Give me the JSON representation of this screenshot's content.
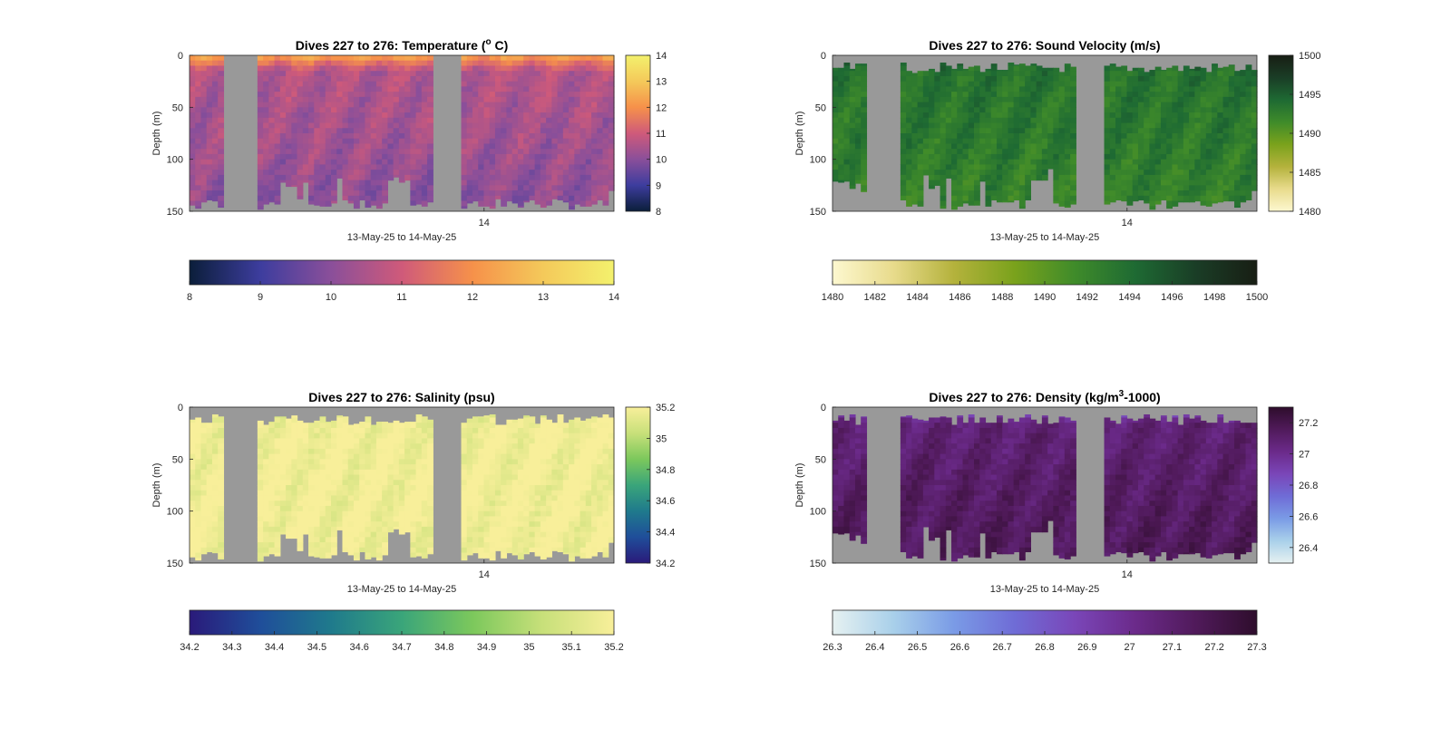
{
  "figure": {
    "background": "#ffffff",
    "missing_data_color": "#999999"
  },
  "chart_data": [
    {
      "type": "heatmap",
      "title": "Dives 227 to 276: Temperature (",
      "title_sup": "o",
      "title_after": " C)",
      "xlabel": "13-May-25 to 14-May-25",
      "ylabel": "Depth (m)",
      "x_ticks": [
        "14"
      ],
      "y_ticks": [
        "0",
        "50",
        "100",
        "150"
      ],
      "ylim": [
        0,
        150
      ],
      "colormap": "thermal",
      "colors": [
        "#0b1e3a",
        "#3d3d9e",
        "#8a4f9a",
        "#cf5a7a",
        "#f6914a",
        "#f4c95a",
        "#f3f16d"
      ],
      "clim": [
        8,
        14
      ],
      "side_colorbar_ticks": [
        "14",
        "13",
        "12",
        "11",
        "10",
        "9",
        "8"
      ],
      "bottom_colorbar_ticks": [
        "8",
        "9",
        "10",
        "11",
        "12",
        "13",
        "14"
      ],
      "values": {
        "surface": 12.4,
        "mixed": 10.6,
        "deep": 10.1
      }
    },
    {
      "type": "heatmap",
      "title": "Dives 227 to 276: Sound Velocity (m/s)",
      "xlabel": "13-May-25 to 14-May-25",
      "ylabel": "Depth (m)",
      "x_ticks": [
        "14"
      ],
      "y_ticks": [
        "0",
        "50",
        "100",
        "150"
      ],
      "ylim": [
        0,
        150
      ],
      "colormap": "speed",
      "colors": [
        "#fdf8d0",
        "#e8db8c",
        "#b4b23c",
        "#7aa21c",
        "#3f8b2a",
        "#1e6a33",
        "#1a3d26",
        "#181e14"
      ],
      "clim": [
        1480,
        1500
      ],
      "side_colorbar_ticks": [
        "1500",
        "1495",
        "1490",
        "1485",
        "1480"
      ],
      "bottom_colorbar_ticks": [
        "1480",
        "1482",
        "1484",
        "1486",
        "1488",
        "1490",
        "1492",
        "1494",
        "1496",
        "1498",
        "1500"
      ],
      "values": {
        "surface": 1495.5,
        "mixed": 1493.5,
        "deep": 1492.5
      }
    },
    {
      "type": "heatmap",
      "title": "Dives 227 to 276: Salinity (psu)",
      "xlabel": "13-May-25 to 14-May-25",
      "ylabel": "Depth (m)",
      "x_ticks": [
        "14"
      ],
      "y_ticks": [
        "0",
        "50",
        "100",
        "150"
      ],
      "ylim": [
        0,
        150
      ],
      "colormap": "haline",
      "colors": [
        "#2a1a7a",
        "#1f4e9a",
        "#1f7a8c",
        "#3aa57a",
        "#7cc85c",
        "#c8e07a",
        "#f8ef9a"
      ],
      "clim": [
        34.2,
        35.2
      ],
      "side_colorbar_ticks": [
        "35.2",
        "35",
        "34.8",
        "34.6",
        "34.4",
        "34.2"
      ],
      "bottom_colorbar_ticks": [
        "34.2",
        "34.3",
        "34.4",
        "34.5",
        "34.6",
        "34.7",
        "34.8",
        "34.9",
        "35",
        "35.1",
        "35.2"
      ],
      "values": {
        "surface": 35.12,
        "mixed": 35.18,
        "deep": 35.18
      }
    },
    {
      "type": "heatmap",
      "title": "Dives 227 to 276: Density (kg/m",
      "title_sup": "3",
      "title_after": "-1000)",
      "xlabel": "13-May-25 to 14-May-25",
      "ylabel": "Depth (m)",
      "x_ticks": [
        "14"
      ],
      "y_ticks": [
        "0",
        "50",
        "100",
        "150"
      ],
      "ylim": [
        0,
        150
      ],
      "colormap": "dense",
      "colors": [
        "#e6f1f1",
        "#a9d0ea",
        "#7a9be6",
        "#6f6cd6",
        "#7a46b8",
        "#6b2a8a",
        "#501a5a",
        "#2e0d2c"
      ],
      "clim": [
        26.3,
        27.3
      ],
      "side_colorbar_ticks": [
        "27.2",
        "27",
        "26.8",
        "26.6",
        "26.4"
      ],
      "bottom_colorbar_ticks": [
        "26.3",
        "26.4",
        "26.5",
        "26.6",
        "26.7",
        "26.8",
        "26.9",
        "27",
        "27.1",
        "27.2",
        "27.3"
      ],
      "values": {
        "surface": 26.78,
        "mixed": 27.08,
        "deep": 27.16
      }
    }
  ]
}
